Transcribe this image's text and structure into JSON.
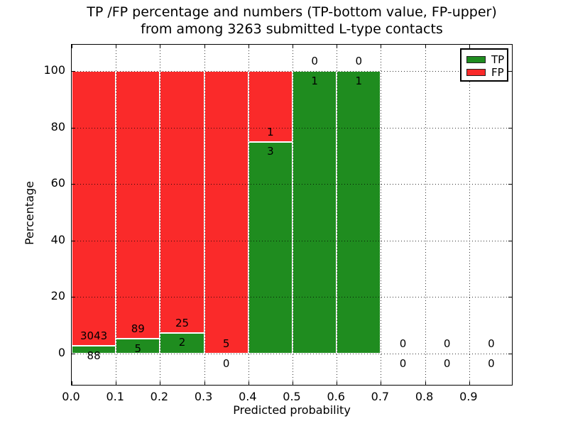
{
  "chart_data": {
    "type": "bar",
    "variant": "stacked-percentage-histogram",
    "title_line1": "TP /FP percentage and numbers (TP-bottom value, FP-upper)",
    "title_line2": "from among 3263 submitted L-type contacts",
    "total_contacts": 3263,
    "xlabel": "Predicted probability",
    "ylabel": "Percentage",
    "x_tick_labels": [
      "0.0",
      "0.1",
      "0.2",
      "0.3",
      "0.4",
      "0.5",
      "0.6",
      "0.7",
      "0.8",
      "0.9"
    ],
    "y_tick_labels": [
      "0",
      "20",
      "40",
      "60",
      "80",
      "100"
    ],
    "y_ticks": [
      0,
      20,
      40,
      60,
      80,
      100
    ],
    "xlim": [
      0.0,
      1.0
    ],
    "bar_width": 0.1,
    "bin_starts": [
      0.0,
      0.1,
      0.2,
      0.3,
      0.4,
      0.5,
      0.6,
      0.7,
      0.8,
      0.9
    ],
    "grid_style": "dotted",
    "legend_position": "upper right",
    "series": [
      {
        "name": "TP",
        "color": "#1f8c1f",
        "counts": [
          88,
          5,
          2,
          0,
          3,
          1,
          1,
          0,
          0,
          0
        ]
      },
      {
        "name": "FP",
        "color": "#fa2a2a",
        "counts": [
          3043,
          89,
          25,
          5,
          1,
          0,
          0,
          0,
          0,
          0
        ]
      }
    ],
    "label_rule": "FP count printed above TP-bar top, TP count printed below TP-bar top"
  }
}
